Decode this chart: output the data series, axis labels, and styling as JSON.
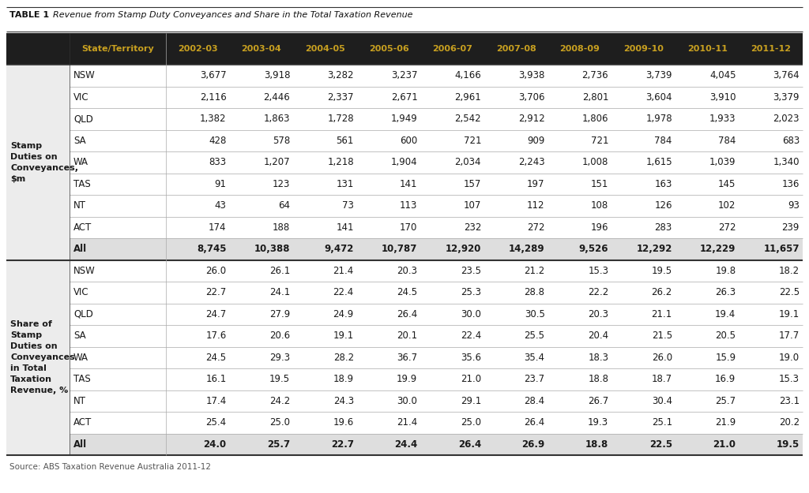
{
  "title_prefix": "TABLE 1",
  "title_italic": "Revenue from Stamp Duty Conveyances and Share in the Total Taxation Revenue",
  "source": "Source: ABS Taxation Revenue Australia 2011-12",
  "header_bg": "#1e1e1e",
  "header_fg": "#c8a020",
  "years": [
    "State/Territory",
    "2002-03",
    "2003-04",
    "2004-05",
    "2005-06",
    "2006-07",
    "2007-08",
    "2008-09",
    "2009-10",
    "2010-11",
    "2011-12"
  ],
  "section1_label": "Stamp\nDuties on\nConveyances,\n$m",
  "section1_rows": [
    [
      "NSW",
      "3,677",
      "3,918",
      "3,282",
      "3,237",
      "4,166",
      "3,938",
      "2,736",
      "3,739",
      "4,045",
      "3,764"
    ],
    [
      "VIC",
      "2,116",
      "2,446",
      "2,337",
      "2,671",
      "2,961",
      "3,706",
      "2,801",
      "3,604",
      "3,910",
      "3,379"
    ],
    [
      "QLD",
      "1,382",
      "1,863",
      "1,728",
      "1,949",
      "2,542",
      "2,912",
      "1,806",
      "1,978",
      "1,933",
      "2,023"
    ],
    [
      "SA",
      "428",
      "578",
      "561",
      "600",
      "721",
      "909",
      "721",
      "784",
      "784",
      "683"
    ],
    [
      "WA",
      "833",
      "1,207",
      "1,218",
      "1,904",
      "2,034",
      "2,243",
      "1,008",
      "1,615",
      "1,039",
      "1,340"
    ],
    [
      "TAS",
      "91",
      "123",
      "131",
      "141",
      "157",
      "197",
      "151",
      "163",
      "145",
      "136"
    ],
    [
      "NT",
      "43",
      "64",
      "73",
      "113",
      "107",
      "112",
      "108",
      "126",
      "102",
      "93"
    ],
    [
      "ACT",
      "174",
      "188",
      "141",
      "170",
      "232",
      "272",
      "196",
      "283",
      "272",
      "239"
    ],
    [
      "All",
      "8,745",
      "10,388",
      "9,472",
      "10,787",
      "12,920",
      "14,289",
      "9,526",
      "12,292",
      "12,229",
      "11,657"
    ]
  ],
  "section2_label": "Share of\nStamp\nDuties on\nConveyances\nin Total\nTaxation\nRevenue, %",
  "section2_rows": [
    [
      "NSW",
      "26.0",
      "26.1",
      "21.4",
      "20.3",
      "23.5",
      "21.2",
      "15.3",
      "19.5",
      "19.8",
      "18.2"
    ],
    [
      "VIC",
      "22.7",
      "24.1",
      "22.4",
      "24.5",
      "25.3",
      "28.8",
      "22.2",
      "26.2",
      "26.3",
      "22.5"
    ],
    [
      "QLD",
      "24.7",
      "27.9",
      "24.9",
      "26.4",
      "30.0",
      "30.5",
      "20.3",
      "21.1",
      "19.4",
      "19.1"
    ],
    [
      "SA",
      "17.6",
      "20.6",
      "19.1",
      "20.1",
      "22.4",
      "25.5",
      "20.4",
      "21.5",
      "20.5",
      "17.7"
    ],
    [
      "WA",
      "24.5",
      "29.3",
      "28.2",
      "36.7",
      "35.6",
      "35.4",
      "18.3",
      "26.0",
      "15.9",
      "19.0"
    ],
    [
      "TAS",
      "16.1",
      "19.5",
      "18.9",
      "19.9",
      "21.0",
      "23.7",
      "18.8",
      "18.7",
      "16.9",
      "15.3"
    ],
    [
      "NT",
      "17.4",
      "24.2",
      "24.3",
      "30.0",
      "29.1",
      "28.4",
      "26.7",
      "30.4",
      "25.7",
      "23.1"
    ],
    [
      "ACT",
      "25.4",
      "25.0",
      "19.6",
      "21.4",
      "25.0",
      "26.4",
      "19.3",
      "25.1",
      "21.9",
      "20.2"
    ],
    [
      "All",
      "24.0",
      "25.7",
      "22.7",
      "24.4",
      "26.4",
      "26.9",
      "18.8",
      "22.5",
      "21.0",
      "19.5"
    ]
  ],
  "text_color": "#1a1a1a",
  "row_bg_white": "#ffffff",
  "row_bg_light": "#efefef",
  "row_bg_all": "#dedede",
  "section_label_bg": "#ececec",
  "heavy_line_color": "#333333",
  "light_line_color": "#aaaaaa"
}
